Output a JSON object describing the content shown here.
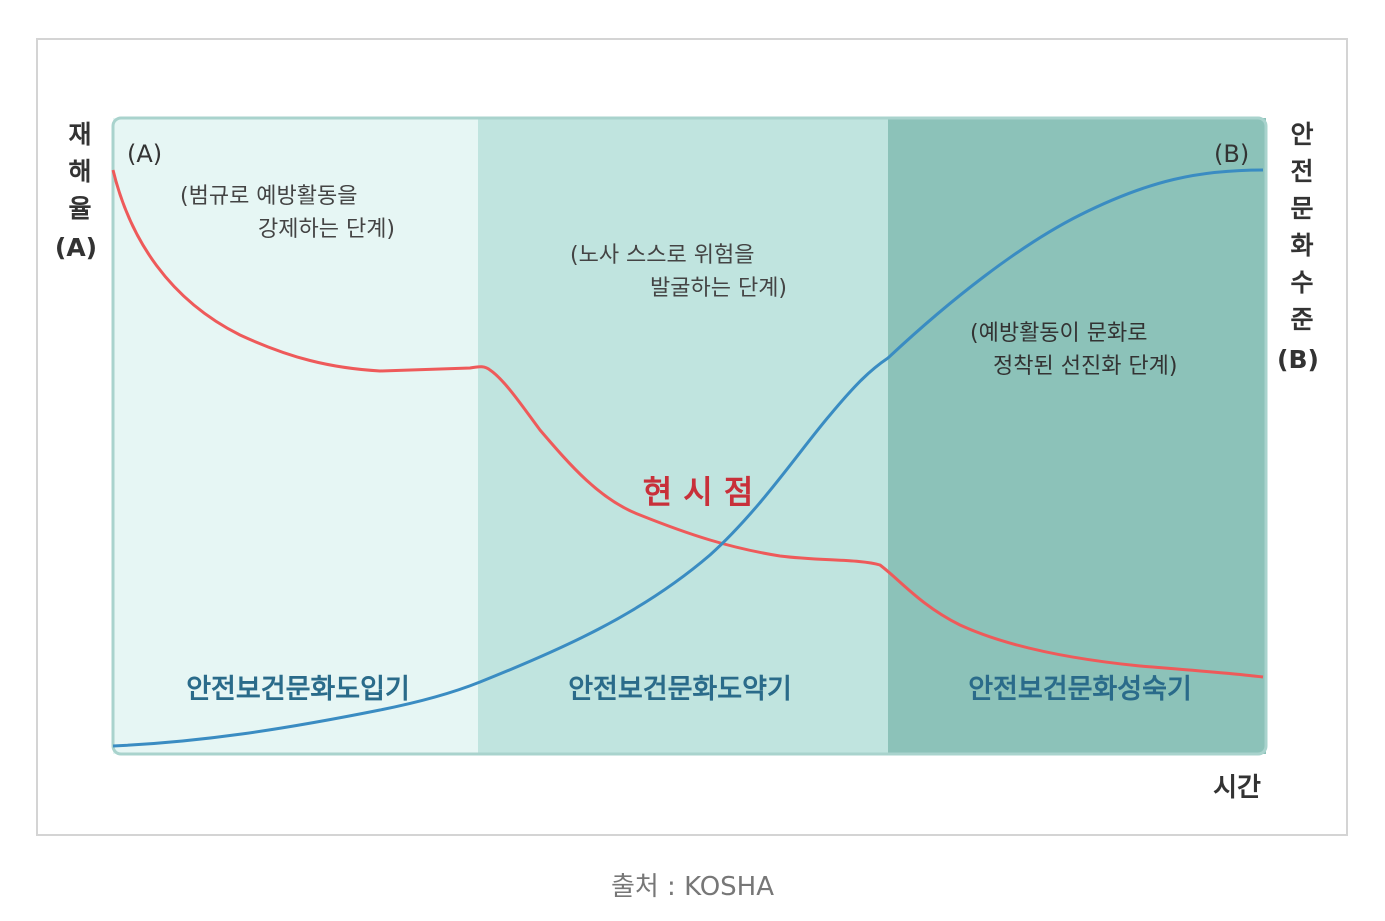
{
  "axes": {
    "left_label_lines": [
      "재",
      "해",
      "율",
      "(A)"
    ],
    "right_label_lines": [
      "안",
      "전",
      "문",
      "화",
      "수",
      "준",
      "(B)"
    ],
    "x_label": "시간"
  },
  "curve_markers": {
    "a": "(A)",
    "b": "(B)"
  },
  "stages": [
    {
      "name": "안전보건문화도입기",
      "desc_lines": [
        "(범규로 예방활동을",
        "강제하는 단계)"
      ],
      "fill": "#e6f6f4"
    },
    {
      "name": "안전보건문화도약기",
      "desc_lines": [
        "(노사 스스로 위험을",
        "발굴하는 단계)"
      ],
      "fill": "#c0e4df"
    },
    {
      "name": "안전보건문화성숙기",
      "desc_lines": [
        "(예방활동이 문화로",
        "정착된 선진화 단계)"
      ],
      "fill": "#8cc2b9"
    }
  ],
  "current_point_label": "현 시 점",
  "colors": {
    "accident_rate_curve": "#ee5a5a",
    "safety_culture_curve": "#3a8cc2",
    "current_point_text": "#c8303a",
    "stage_name_text": "#2a6b8a",
    "border": "#a9d3cd"
  },
  "caption": "출처 : KOSHA"
}
